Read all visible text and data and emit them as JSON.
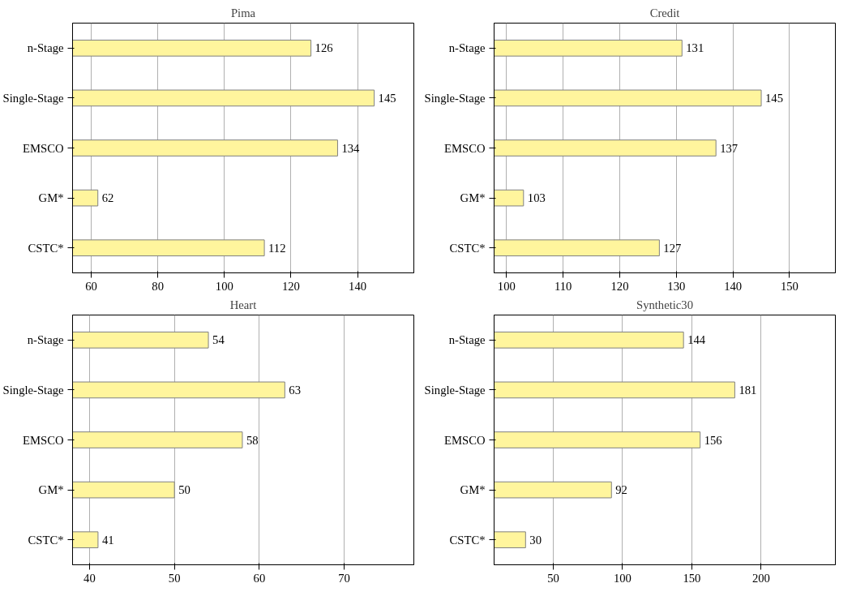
{
  "chart_data": [
    {
      "type": "bar",
      "orientation": "horizontal",
      "title": "Pima",
      "categories": [
        "n-Stage",
        "Single-Stage",
        "EMSCO",
        "GM*",
        "CSTC*"
      ],
      "values": [
        126,
        145,
        134,
        62,
        112
      ],
      "color": "#fff59d",
      "data_labels": true,
      "xlim": [
        54.4,
        156.9
      ],
      "xticks": [
        60,
        80,
        100,
        120,
        140
      ],
      "grid": "x"
    },
    {
      "type": "bar",
      "orientation": "horizontal",
      "title": "Credit",
      "categories": [
        "n-Stage",
        "Single-Stage",
        "EMSCO",
        "GM*",
        "CSTC*"
      ],
      "values": [
        131,
        145,
        137,
        103,
        127
      ],
      "color": "#fff59d",
      "data_labels": true,
      "xlim": [
        97.8,
        158.1
      ],
      "xticks": [
        100,
        110,
        120,
        130,
        140,
        150
      ],
      "grid": "x"
    },
    {
      "type": "bar",
      "orientation": "horizontal",
      "title": "Heart",
      "categories": [
        "n-Stage",
        "Single-Stage",
        "EMSCO",
        "GM*",
        "CSTC*"
      ],
      "values": [
        54,
        63,
        58,
        50,
        41
      ],
      "color": "#fff59d",
      "data_labels": true,
      "xlim": [
        38.0,
        78.2
      ],
      "xticks": [
        40,
        50,
        60,
        70
      ],
      "grid": "x"
    },
    {
      "type": "bar",
      "orientation": "horizontal",
      "title": "Synthetic30",
      "categories": [
        "n-Stage",
        "Single-Stage",
        "EMSCO",
        "GM*",
        "CSTC*"
      ],
      "values": [
        144,
        181,
        156,
        92,
        30
      ],
      "color": "#fff59d",
      "data_labels": true,
      "xlim": [
        7.3,
        253.6
      ],
      "xticks": [
        50,
        100,
        150,
        200
      ],
      "grid": "x"
    }
  ]
}
